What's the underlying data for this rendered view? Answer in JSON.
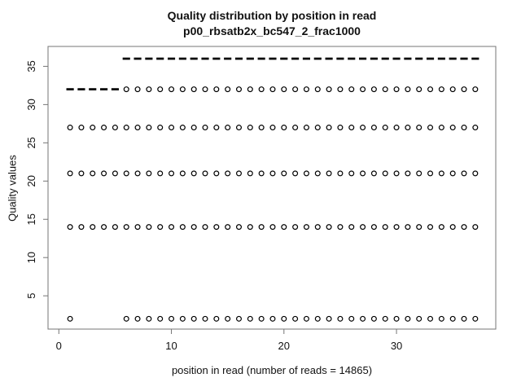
{
  "chart_data": {
    "type": "boxplot",
    "title": "Quality distribution by position in read",
    "subtitle": "p00_rbsatb2x_bc547_2_frac1000",
    "xlabel": "position in read (number of reads = 14865)",
    "ylabel": "Quality values",
    "number_of_reads": 14865,
    "x_ticks": [
      0,
      10,
      20,
      30
    ],
    "y_ticks": [
      5,
      10,
      15,
      20,
      25,
      30,
      35
    ],
    "xlim": [
      -0.96,
      38.82
    ],
    "ylim": [
      0.65,
      37.6
    ],
    "positions_range": [
      1,
      37
    ],
    "box_half_width": 0.33,
    "medians": [
      {
        "value": 32,
        "from": 1,
        "to": 5
      },
      {
        "value": 36,
        "from": 6,
        "to": 37
      }
    ],
    "outliers": [
      {
        "value": 32,
        "ranges": [
          [
            6,
            37
          ]
        ]
      },
      {
        "value": 27,
        "ranges": [
          [
            1,
            37
          ]
        ]
      },
      {
        "value": 21,
        "ranges": [
          [
            1,
            37
          ]
        ]
      },
      {
        "value": 14,
        "ranges": [
          [
            1,
            37
          ]
        ]
      },
      {
        "value": 2,
        "ranges": [
          [
            1,
            1
          ],
          [
            6,
            37
          ]
        ]
      }
    ],
    "grid": false,
    "legend": "none",
    "colors": {
      "marks": "#000000",
      "frame": "#757575",
      "text": "#111111",
      "background": "#ffffff"
    }
  }
}
